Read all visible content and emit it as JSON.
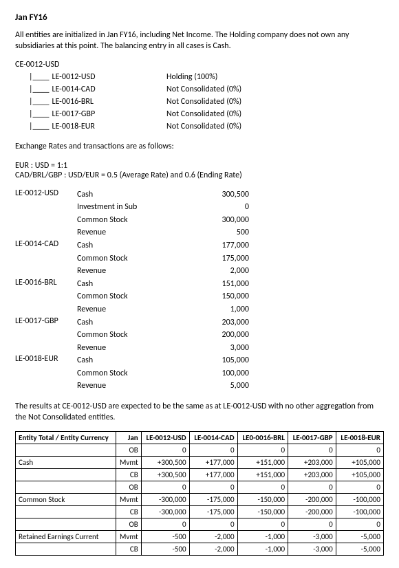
{
  "title": "Jan FY16",
  "intro": "All entities are initialized in Jan FY16, including Net Income. The Holding company does not own any subsidiaries at this point. The balancing entry in all cases is Cash.",
  "tree": {
    "root": "CE-0012-USD",
    "children": [
      {
        "code": "LE-0012-USD",
        "status": "Holding (100%)"
      },
      {
        "code": "LE-0014-CAD",
        "status": "Not Consolidated (0%)"
      },
      {
        "code": "LE-0016-BRL",
        "status": "Not Consolidated (0%)"
      },
      {
        "code": "LE-0017-GBP",
        "status": "Not Consolidated (0%)"
      },
      {
        "code": "LE-0018-EUR",
        "status": "Not Consolidated (0%)"
      }
    ]
  },
  "rates_heading": "Exchange Rates and transactions are as follows:",
  "rates_line1": "EUR : USD = 1:1",
  "rates_line2": "CAD/BRL/GBP : USD/EUR = 0.5 (Average Rate) and 0.6 (Ending Rate)",
  "accounts": [
    {
      "entity": "LE-0012-USD",
      "lines": [
        {
          "name": "Cash",
          "value": "300,500"
        },
        {
          "name": "Investment in Sub",
          "value": "0"
        },
        {
          "name": "Common Stock",
          "value": "300,000"
        },
        {
          "name": "Revenue",
          "value": "500"
        }
      ]
    },
    {
      "entity": "LE-0014-CAD",
      "lines": [
        {
          "name": "Cash",
          "value": "177,000"
        },
        {
          "name": "Common Stock",
          "value": "175,000"
        },
        {
          "name": "Revenue",
          "value": "2,000"
        }
      ]
    },
    {
      "entity": "LE-0016-BRL",
      "lines": [
        {
          "name": "Cash",
          "value": "151,000"
        },
        {
          "name": "Common Stock",
          "value": "150,000"
        },
        {
          "name": "Revenue",
          "value": "1,000"
        }
      ]
    },
    {
      "entity": "LE-0017-GBP",
      "lines": [
        {
          "name": "Cash",
          "value": "203,000"
        },
        {
          "name": "Common Stock",
          "value": "200,000"
        },
        {
          "name": "Revenue",
          "value": "3,000"
        }
      ]
    },
    {
      "entity": "LE-0018-EUR",
      "lines": [
        {
          "name": "Cash",
          "value": "105,000"
        },
        {
          "name": "Common Stock",
          "value": "100,000"
        },
        {
          "name": "Revenue",
          "value": "5,000"
        }
      ]
    }
  ],
  "results_note": "The results at CE-0012-USD are expected to be the same as at LE-0012-USD with no other aggregation from the Not Consolidated entities.",
  "table": {
    "header_main": "Entity Total / Entity Currency",
    "header_period": "Jan",
    "entity_cols": [
      "LE-0012-USD",
      "LE-0014-CAD",
      "LE0-0016-BRL",
      "LE-0017-GBP",
      "LE-0018-EUR"
    ],
    "row_labels": [
      "OB",
      "Mvmt",
      "CB"
    ],
    "groups": [
      {
        "name": "Cash",
        "rows": [
          [
            "0",
            "0",
            "0",
            "0",
            "0"
          ],
          [
            "+300,500",
            "+177,000",
            "+151,000",
            "+203,000",
            "+105,000"
          ],
          [
            "+300,500",
            "+177,000",
            "+151,000",
            "+203,000",
            "+105,000"
          ]
        ]
      },
      {
        "name": "Common Stock",
        "rows": [
          [
            "0",
            "0",
            "0",
            "0",
            "0"
          ],
          [
            "-300,000",
            "-175,000",
            "-150,000",
            "-200,000",
            "-100,000"
          ],
          [
            "-300,000",
            "-175,000",
            "-150,000",
            "-200,000",
            "-100,000"
          ]
        ]
      },
      {
        "name": "Retained Earnings Current",
        "rows": [
          [
            "0",
            "0",
            "0",
            "0",
            "0"
          ],
          [
            "-500",
            "-2,000",
            "-1,000",
            "-3,000",
            "-5,000"
          ],
          [
            "-500",
            "-2,000",
            "-1,000",
            "-3,000",
            "-5,000"
          ]
        ]
      }
    ]
  }
}
